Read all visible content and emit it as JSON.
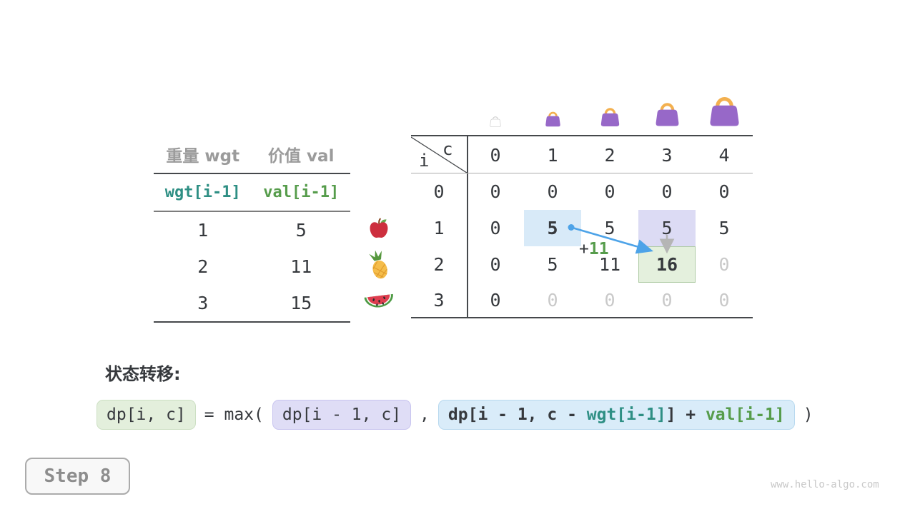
{
  "colors": {
    "dark_text": "#36393d",
    "gray_text": "#9b9b9b",
    "faded_text": "#c9c9c9",
    "teal": "#2e8f84",
    "green": "#569c4b",
    "arrow_blue": "#4da3e8",
    "arrow_gray": "#b5b5b5",
    "hl_blue": "#d8eaf8",
    "hl_lavender": "#dcdbf4",
    "hl_green_bg": "#e4f0dd",
    "hl_green_border": "#aecba4",
    "chip_green_bg": "#e3efdc",
    "chip_green_border": "#cde0c4",
    "chip_lavender_bg": "#dfddf6",
    "chip_lavender_border": "#c9c5ef",
    "chip_blue_bg": "#d9ecf9",
    "chip_blue_border": "#b8d9ef",
    "bag_body": "#9768c8",
    "bag_handle": "#f3b04f",
    "line_dark": "#45484b"
  },
  "items_table": {
    "col_headers": [
      "重量 wgt",
      "价值 val"
    ],
    "formula_row": [
      "wgt[i-1]",
      "val[i-1]"
    ],
    "rows": [
      {
        "wgt": "1",
        "val": "5",
        "icon": "apple-icon"
      },
      {
        "wgt": "2",
        "val": "11",
        "icon": "pineapple-icon"
      },
      {
        "wgt": "3",
        "val": "15",
        "icon": "watermelon-icon"
      }
    ]
  },
  "dp_table": {
    "corner_top": "c",
    "corner_side": "i",
    "col_headers": [
      "0",
      "1",
      "2",
      "3",
      "4"
    ],
    "row_headers": [
      "0",
      "1",
      "2",
      "3"
    ],
    "bag_icons": [
      "bag-outline-icon",
      "bag-small-icon",
      "bag-medium-icon",
      "bag-large-icon",
      "bag-xlarge-icon"
    ],
    "cells": [
      [
        {
          "v": "0"
        },
        {
          "v": "0"
        },
        {
          "v": "0"
        },
        {
          "v": "0"
        },
        {
          "v": "0"
        }
      ],
      [
        {
          "v": "0"
        },
        {
          "v": "5",
          "bold": true,
          "hl": "blue"
        },
        {
          "v": "5"
        },
        {
          "v": "5",
          "hl": "lavender"
        },
        {
          "v": "5"
        }
      ],
      [
        {
          "v": "0"
        },
        {
          "v": "5"
        },
        {
          "v": "11"
        },
        {
          "v": "16",
          "bold": true,
          "hl": "green"
        },
        {
          "v": "0",
          "faded": true
        }
      ],
      [
        {
          "v": "0"
        },
        {
          "v": "0",
          "faded": true
        },
        {
          "v": "0",
          "faded": true
        },
        {
          "v": "0",
          "faded": true
        },
        {
          "v": "0",
          "faded": true
        }
      ]
    ],
    "annotation": {
      "plus": "+",
      "value": "11"
    }
  },
  "transition": {
    "label": "状态转移:",
    "lhs": "dp[i, c]",
    "eq_max": "= max(",
    "arg1": "dp[i - 1, c]",
    "comma": ",",
    "arg2_parts": [
      {
        "text": "dp[i - 1, c - ",
        "color": "dark"
      },
      {
        "text": "wgt[i-1]",
        "color": "teal"
      },
      {
        "text": "] + ",
        "color": "dark"
      },
      {
        "text": "val[i-1]",
        "color": "green"
      }
    ],
    "close": ")"
  },
  "step_badge": "Step 8",
  "watermark": "www.hello-algo.com"
}
